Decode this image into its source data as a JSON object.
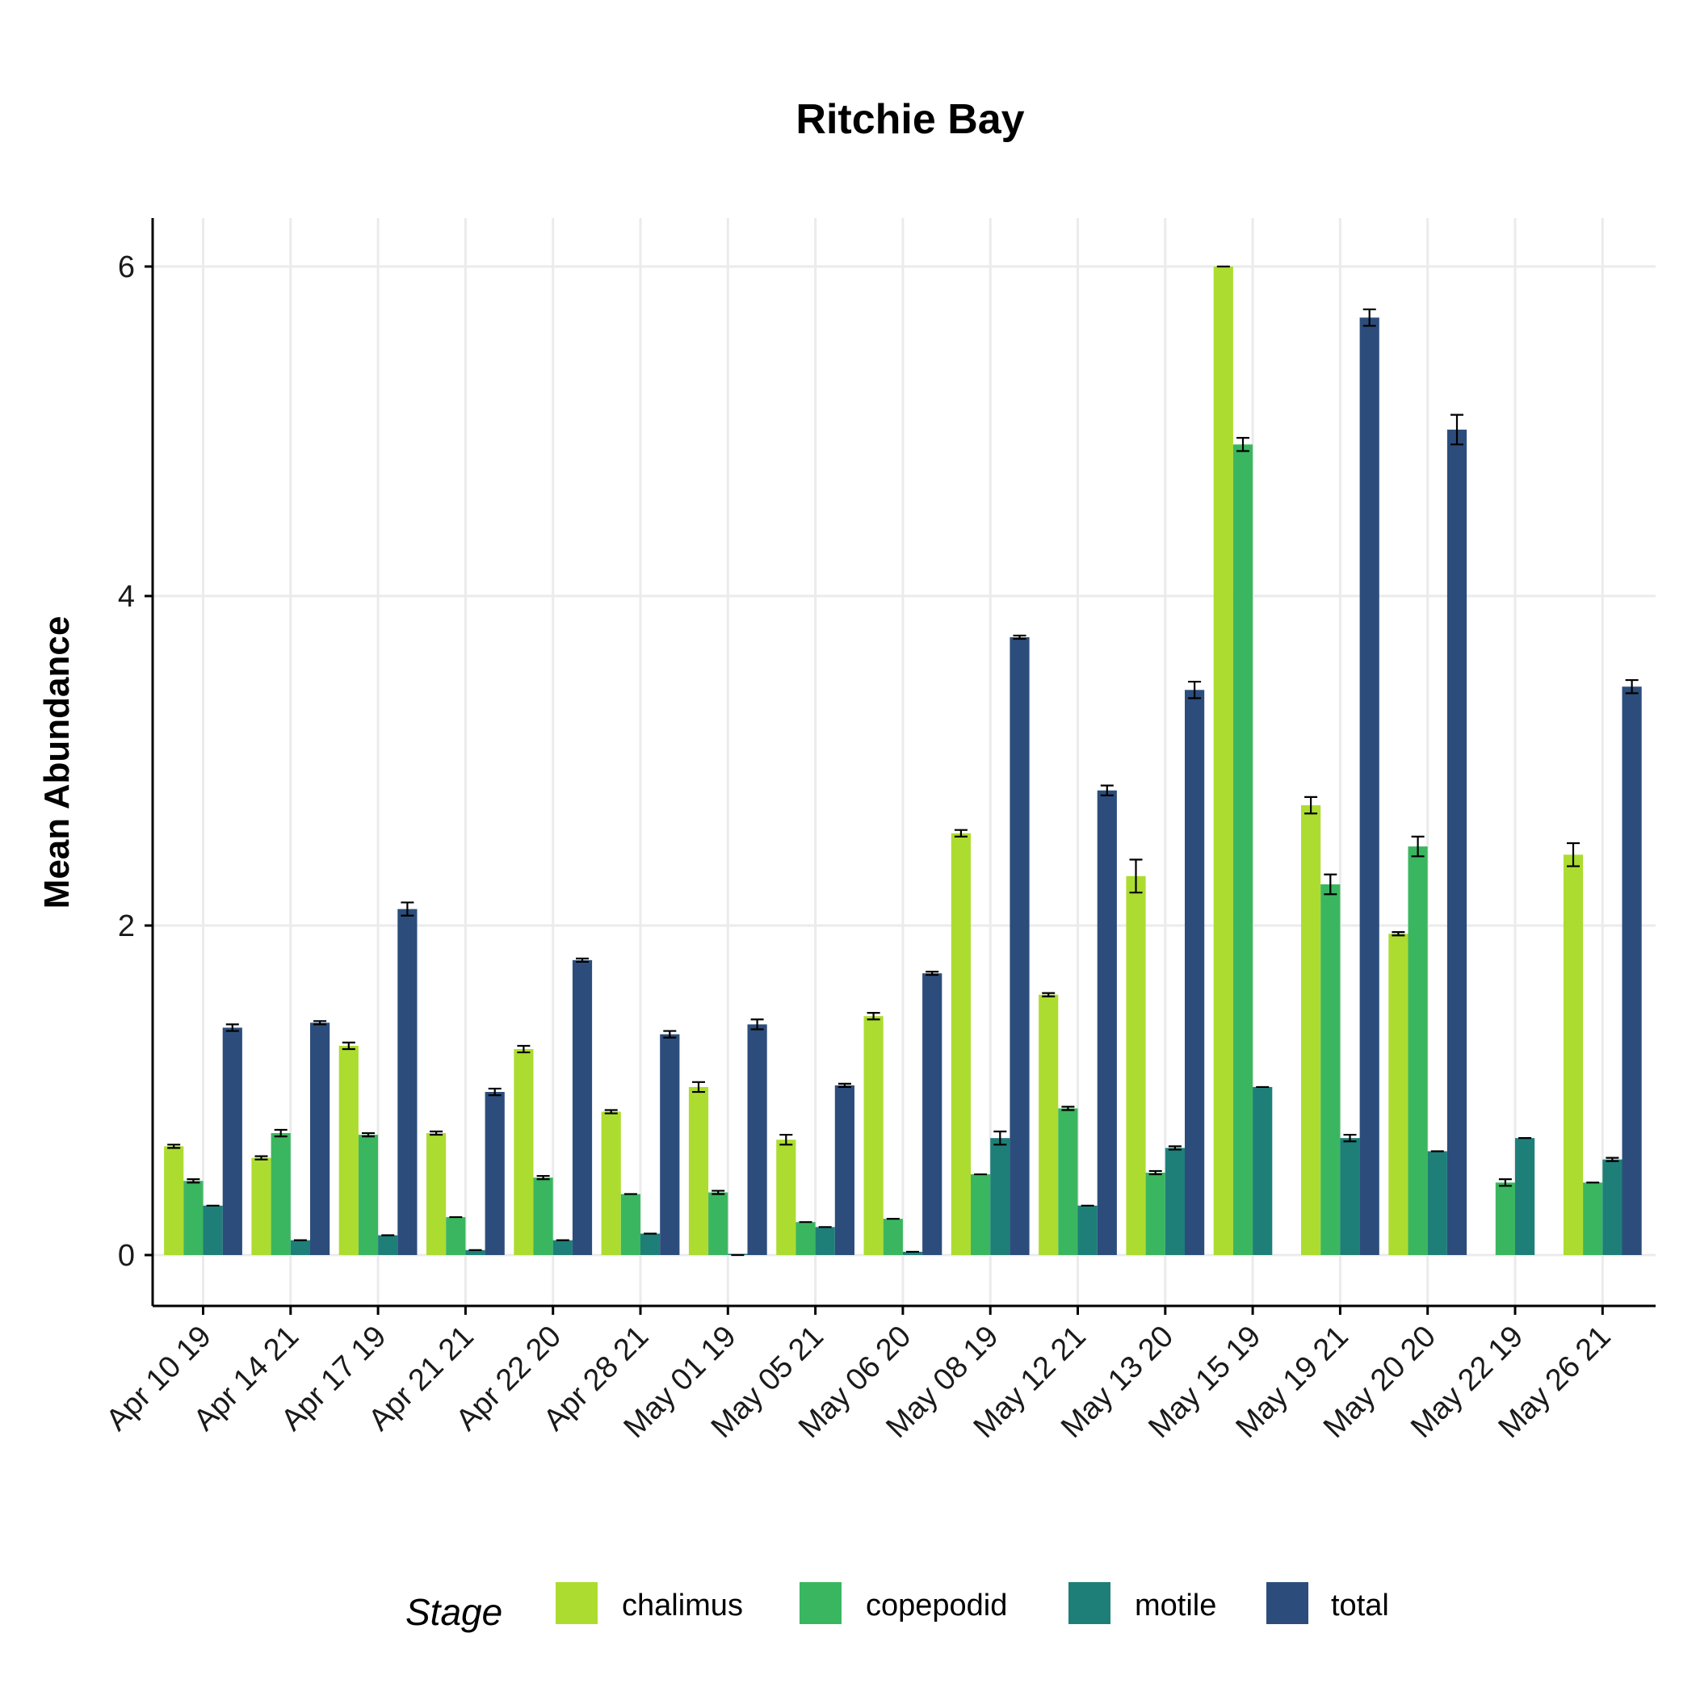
{
  "chart_data": {
    "type": "bar",
    "title": "Ritchie Bay",
    "xlabel": "",
    "ylabel": "Mean Abundance",
    "ylim": [
      -0.3,
      6.3
    ],
    "yticks": [
      0,
      2,
      4,
      6
    ],
    "grid": true,
    "legend": {
      "title": "Stage",
      "position": "bottom"
    },
    "categories": [
      "Apr 10 19",
      "Apr 14 21",
      "Apr 17 19",
      "Apr 21 21",
      "Apr 22 20",
      "Apr 28 21",
      "May 01 19",
      "May 05 21",
      "May 06 20",
      "May 08 19",
      "May 12 21",
      "May 13 20",
      "May 15 19",
      "May 19 21",
      "May 20 20",
      "May 22 19",
      "May 26 21"
    ],
    "series": [
      {
        "name": "chalimus",
        "color": "#addc30",
        "values": [
          0.66,
          0.59,
          1.27,
          0.74,
          1.25,
          0.87,
          1.02,
          0.7,
          1.45,
          2.56,
          1.58,
          2.3,
          6.0,
          2.73,
          1.95,
          null,
          2.43
        ],
        "errors": [
          0.01,
          0.01,
          0.02,
          0.01,
          0.02,
          0.01,
          0.03,
          0.03,
          0.02,
          0.02,
          0.01,
          0.1,
          0.0,
          0.05,
          0.01,
          null,
          0.07
        ]
      },
      {
        "name": "copepodid",
        "color": "#3bb660",
        "values": [
          0.45,
          0.74,
          0.73,
          0.23,
          0.47,
          0.37,
          0.38,
          0.2,
          0.22,
          0.49,
          0.89,
          0.5,
          4.92,
          2.25,
          2.48,
          0.44,
          0.44
        ],
        "errors": [
          0.01,
          0.02,
          0.01,
          0.0,
          0.01,
          0.0,
          0.01,
          0.0,
          0.0,
          0.0,
          0.01,
          0.01,
          0.04,
          0.06,
          0.06,
          0.02,
          0.0
        ]
      },
      {
        "name": "motile",
        "color": "#1e7f79",
        "values": [
          0.3,
          0.09,
          0.12,
          0.03,
          0.09,
          0.13,
          0.0,
          0.17,
          0.02,
          0.71,
          0.3,
          0.65,
          1.02,
          0.71,
          0.63,
          0.71,
          0.58
        ],
        "errors": [
          0.0,
          0.0,
          0.0,
          0.0,
          0.0,
          0.0,
          0.0,
          0.0,
          0.0,
          0.04,
          0.0,
          0.01,
          0.0,
          0.02,
          0.0,
          0.0,
          0.01
        ]
      },
      {
        "name": "total",
        "color": "#2c4d7c",
        "values": [
          1.38,
          1.41,
          2.1,
          0.99,
          1.79,
          1.34,
          1.4,
          1.03,
          1.71,
          3.75,
          2.82,
          3.43,
          null,
          5.69,
          5.01,
          null,
          3.45
        ],
        "errors": [
          0.02,
          0.01,
          0.04,
          0.02,
          0.01,
          0.02,
          0.03,
          0.01,
          0.01,
          0.01,
          0.03,
          0.05,
          null,
          0.05,
          0.09,
          null,
          0.04
        ]
      }
    ]
  }
}
